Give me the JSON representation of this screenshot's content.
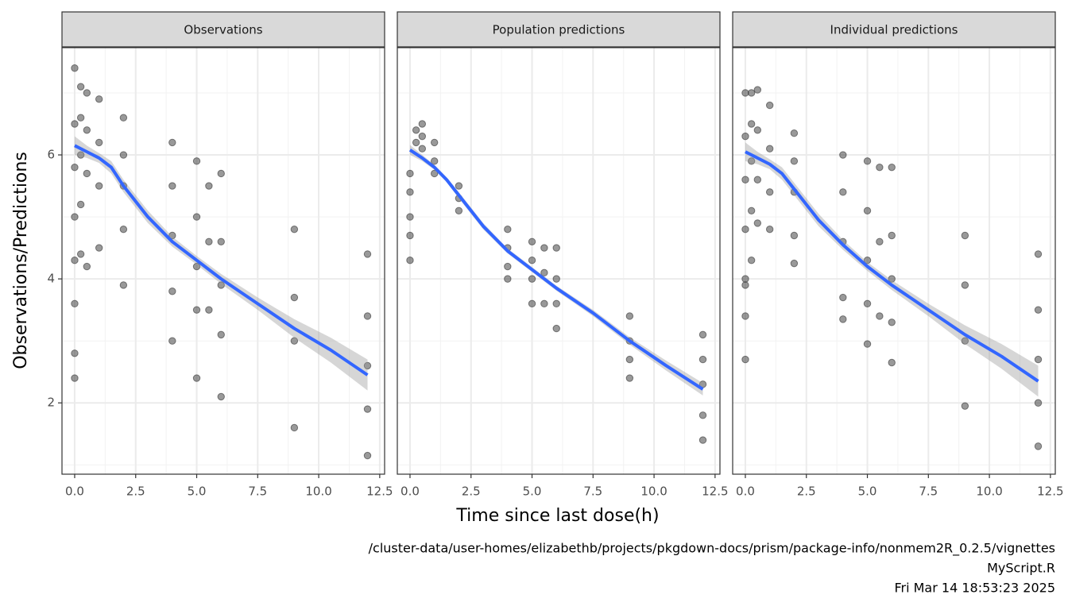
{
  "chart_data": {
    "type": "scatter",
    "xlabel": "Time since last dose(h)",
    "ylabel": "Observations/Predictions",
    "caption": [
      "/cluster-data/user-homes/elizabethb/projects/pkgdown-docs/prism/package-info/nonmem2R_0.2.5/vignettes",
      "MyScript.R",
      "Fri Mar 14 18:53:23 2025"
    ],
    "xlim": [
      -0.52,
      12.7
    ],
    "ylim": [
      0.85,
      7.73
    ],
    "xticks": [
      {
        "value": 0,
        "label": "0.0"
      },
      2.5,
      {
        "value": 5,
        "label": "5.0"
      },
      7.5,
      {
        "value": 10,
        "label": "10.0"
      },
      12.5
    ],
    "yticks": [
      2,
      4,
      6
    ],
    "minor_xticks": [
      1.25,
      3.75,
      6.25,
      8.75,
      11.25
    ],
    "minor_yticks": [
      1,
      3,
      5,
      7
    ],
    "grid": true,
    "point_color": "#333333",
    "line_color": "#3366ff",
    "ribbon_color": "#999999",
    "panels": [
      {
        "title": "Observations",
        "x": [
          0,
          0,
          0,
          0,
          0,
          0,
          0,
          0,
          0.25,
          0.25,
          0.25,
          0.25,
          0.25,
          0.5,
          0.5,
          0.5,
          0.5,
          1,
          1,
          1,
          1,
          2,
          2,
          2,
          2,
          2,
          4,
          4,
          4,
          4,
          4,
          5,
          5,
          5,
          5,
          5,
          5.5,
          5.5,
          5.5,
          6,
          6,
          6,
          6,
          6,
          9,
          9,
          9,
          9,
          12,
          12,
          12,
          12,
          12
        ],
        "y": [
          7.4,
          6.5,
          5.8,
          5,
          4.3,
          3.6,
          2.8,
          2.4,
          7.1,
          6.6,
          6,
          5.2,
          4.4,
          7,
          6.4,
          5.7,
          4.2,
          6.9,
          6.2,
          5.5,
          4.5,
          6.6,
          6,
          5.5,
          4.8,
          3.9,
          6.2,
          5.5,
          4.7,
          3.8,
          3,
          5.9,
          5,
          4.2,
          3.5,
          2.4,
          5.5,
          4.6,
          3.5,
          5.7,
          4.6,
          3.9,
          3.1,
          2.1,
          4.8,
          3.7,
          3,
          1.6,
          4.4,
          3.4,
          2.6,
          1.9,
          1.15
        ],
        "smooth": {
          "x": [
            0,
            0.5,
            1,
            1.5,
            2,
            3,
            4,
            5,
            6,
            7.5,
            9,
            10.5,
            12
          ],
          "y": [
            6.15,
            6.05,
            5.95,
            5.8,
            5.5,
            5.0,
            4.6,
            4.3,
            4.0,
            3.6,
            3.2,
            2.85,
            2.45
          ],
          "lower": [
            6.0,
            5.95,
            5.87,
            5.7,
            5.4,
            4.9,
            4.52,
            4.23,
            3.92,
            3.5,
            3.05,
            2.65,
            2.2
          ],
          "upper": [
            6.3,
            6.15,
            6.03,
            5.9,
            5.6,
            5.1,
            4.68,
            4.37,
            4.08,
            3.7,
            3.35,
            3.05,
            2.7
          ]
        }
      },
      {
        "title": "Population predictions",
        "x": [
          0,
          0,
          0,
          0,
          0,
          0.25,
          0.25,
          0.5,
          0.5,
          0.5,
          1,
          1,
          1,
          2,
          2,
          2,
          4,
          4,
          4,
          4,
          5,
          5,
          5,
          5,
          5.5,
          5.5,
          5.5,
          6,
          6,
          6,
          6,
          9,
          9,
          9,
          9,
          12,
          12,
          12,
          12,
          12
        ],
        "y": [
          5.7,
          5.4,
          5,
          4.7,
          4.3,
          6.4,
          6.2,
          6.5,
          6.3,
          6.1,
          6.2,
          5.9,
          5.7,
          5.5,
          5.3,
          5.1,
          4.8,
          4.5,
          4.2,
          4,
          4.6,
          4.3,
          4,
          3.6,
          4.5,
          4.1,
          3.6,
          4.5,
          4,
          3.6,
          3.2,
          3.4,
          3,
          2.7,
          2.4,
          3.1,
          2.7,
          2.3,
          1.8,
          1.4
        ],
        "smooth": {
          "x": [
            0,
            0.5,
            1,
            1.5,
            2,
            3,
            4,
            5,
            6,
            7.5,
            9,
            10.5,
            12
          ],
          "y": [
            6.08,
            5.95,
            5.8,
            5.6,
            5.35,
            4.85,
            4.45,
            4.15,
            3.85,
            3.45,
            3.0,
            2.6,
            2.22
          ],
          "lower": [
            6.0,
            5.9,
            5.76,
            5.56,
            5.3,
            4.8,
            4.41,
            4.11,
            3.81,
            3.4,
            2.94,
            2.52,
            2.12
          ],
          "upper": [
            6.16,
            6.0,
            5.84,
            5.64,
            5.4,
            4.9,
            4.49,
            4.19,
            3.89,
            3.5,
            3.06,
            2.68,
            2.32
          ]
        }
      },
      {
        "title": "Individual predictions",
        "x": [
          0,
          0,
          0,
          0,
          0,
          0,
          0,
          0,
          0.25,
          0.25,
          0.25,
          0.25,
          0.25,
          0.5,
          0.5,
          0.5,
          0.5,
          1,
          1,
          1,
          1,
          2,
          2,
          2,
          2,
          2,
          4,
          4,
          4,
          4,
          4,
          5,
          5,
          5,
          5,
          5,
          5.5,
          5.5,
          5.5,
          6,
          6,
          6,
          6,
          6,
          9,
          9,
          9,
          9,
          12,
          12,
          12,
          12,
          12
        ],
        "y": [
          7,
          6.3,
          5.6,
          4.8,
          4,
          3.4,
          2.7,
          3.9,
          7,
          6.5,
          5.9,
          5.1,
          4.3,
          7.05,
          6.4,
          5.6,
          4.9,
          6.8,
          6.1,
          5.4,
          4.8,
          6.35,
          5.9,
          5.4,
          4.7,
          4.25,
          6,
          5.4,
          4.6,
          3.7,
          3.35,
          5.9,
          5.1,
          4.3,
          3.6,
          2.95,
          5.8,
          4.6,
          3.4,
          5.8,
          4.7,
          4,
          3.3,
          2.65,
          4.7,
          3.9,
          3,
          1.95,
          4.4,
          3.5,
          2.7,
          2,
          1.3
        ],
        "smooth": {
          "x": [
            0,
            0.5,
            1,
            1.5,
            2,
            3,
            4,
            5,
            6,
            7.5,
            9,
            10.5,
            12
          ],
          "y": [
            6.05,
            5.95,
            5.85,
            5.7,
            5.45,
            4.95,
            4.55,
            4.2,
            3.9,
            3.5,
            3.1,
            2.75,
            2.35
          ],
          "lower": [
            5.9,
            5.85,
            5.77,
            5.6,
            5.35,
            4.85,
            4.47,
            4.13,
            3.82,
            3.4,
            2.95,
            2.55,
            2.1
          ],
          "upper": [
            6.2,
            6.05,
            5.93,
            5.8,
            5.55,
            5.05,
            4.63,
            4.27,
            3.98,
            3.6,
            3.25,
            2.95,
            2.6
          ]
        }
      }
    ]
  }
}
